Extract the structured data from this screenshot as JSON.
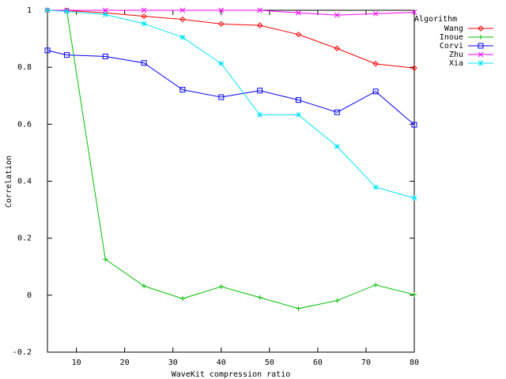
{
  "chart_data": {
    "type": "line",
    "title": "",
    "xlabel": "WaveKit compression ratio",
    "ylabel": "Correlation",
    "xlim": [
      4,
      80
    ],
    "ylim": [
      -0.2,
      1
    ],
    "xticks": [
      10,
      20,
      30,
      40,
      50,
      60,
      70,
      80
    ],
    "yticks": [
      -0.2,
      0,
      0.2,
      0.4,
      0.6,
      0.8,
      1
    ],
    "ytick_labels": [
      "-0.2",
      "0",
      "0.2",
      "0.4",
      "0.6",
      "0.8",
      "1"
    ],
    "grid": false,
    "legend": {
      "title": "Algorithm",
      "placement": "top-right"
    },
    "series": [
      {
        "name": "Wang",
        "color": "#ff0000",
        "marker": "diamond",
        "x": [
          4,
          8,
          16,
          24,
          32,
          40,
          48,
          56,
          64,
          72,
          80
        ],
        "y": [
          1.0,
          0.999,
          0.991,
          0.979,
          0.968,
          0.952,
          0.947,
          0.915,
          0.866,
          0.812,
          0.797
        ]
      },
      {
        "name": "Inoue",
        "color": "#00c000",
        "marker": "plus",
        "x": [
          4,
          8,
          16,
          24,
          32,
          40,
          48,
          56,
          64,
          72,
          80
        ],
        "y": [
          1.0,
          0.999,
          0.126,
          0.032,
          -0.012,
          0.03,
          -0.008,
          -0.047,
          -0.019,
          0.036,
          0.002
        ]
      },
      {
        "name": "Corvi",
        "color": "#0000ff",
        "marker": "square",
        "x": [
          4,
          8,
          16,
          24,
          32,
          40,
          48,
          56,
          64,
          72,
          80
        ],
        "y": [
          0.859,
          0.843,
          0.838,
          0.815,
          0.721,
          0.695,
          0.718,
          0.685,
          0.642,
          0.715,
          0.598
        ]
      },
      {
        "name": "Zhu",
        "color": "#ff00ff",
        "marker": "cross",
        "x": [
          4,
          8,
          16,
          24,
          32,
          40,
          48,
          56,
          64,
          72,
          80
        ],
        "y": [
          1.0,
          1.0,
          1.0,
          1.0,
          1.0,
          1.0,
          1.0,
          0.991,
          0.983,
          0.988,
          0.993
        ]
      },
      {
        "name": "Xia",
        "color": "#00e5ff",
        "marker": "star",
        "x": [
          4,
          8,
          16,
          24,
          32,
          40,
          48,
          56,
          64,
          72,
          80
        ],
        "y": [
          1.0,
          0.996,
          0.985,
          0.953,
          0.905,
          0.813,
          0.633,
          0.633,
          0.522,
          0.379,
          0.341
        ]
      }
    ]
  }
}
